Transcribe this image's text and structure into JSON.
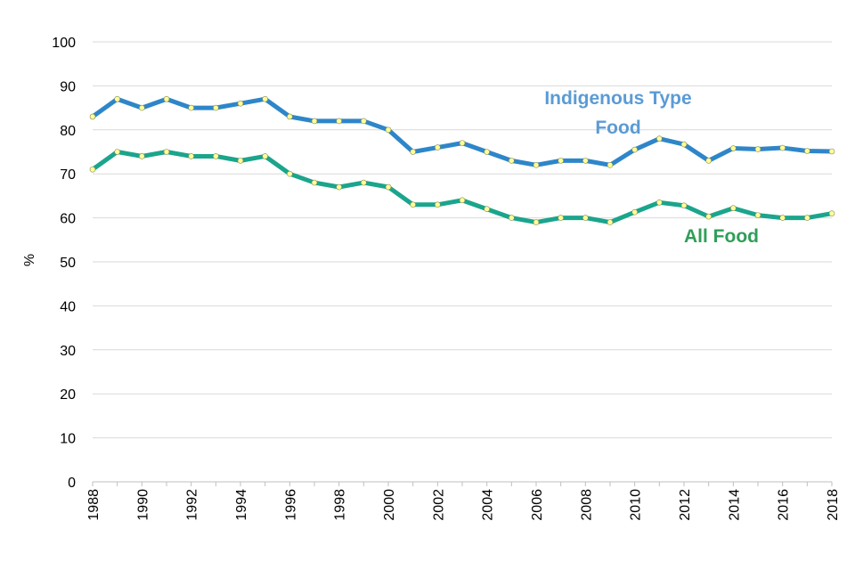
{
  "chart_data": {
    "type": "line",
    "ylabel": "%",
    "xlabel": "",
    "ylim": [
      0,
      100
    ],
    "yticks": [
      0,
      10,
      20,
      30,
      40,
      50,
      60,
      70,
      80,
      90,
      100
    ],
    "xlim": [
      1988,
      2018
    ],
    "xticks": [
      1988,
      1990,
      1992,
      1994,
      1996,
      1998,
      2000,
      2002,
      2004,
      2006,
      2008,
      2010,
      2012,
      2014,
      2016,
      2018
    ],
    "grid": true,
    "x": [
      1988,
      1989,
      1990,
      1991,
      1992,
      1993,
      1994,
      1995,
      1996,
      1997,
      1998,
      1999,
      2000,
      2001,
      2002,
      2003,
      2004,
      2005,
      2006,
      2007,
      2008,
      2009,
      2010,
      2011,
      2012,
      2013,
      2014,
      2015,
      2016,
      2017,
      2018
    ],
    "series": [
      {
        "name": "Indigenous Type Food",
        "label_lines": [
          "Indigenous Type",
          "Food"
        ],
        "color": "#2e86c9",
        "label_color": "#5b9bd5",
        "values": [
          83,
          87,
          85,
          87,
          85,
          85,
          86,
          87,
          83,
          82,
          82,
          82,
          80,
          75,
          76,
          77,
          75,
          73,
          72,
          73,
          73,
          72,
          75.5,
          78,
          76.7,
          73,
          75.8,
          75.6,
          75.9,
          75.2,
          75.1
        ]
      },
      {
        "name": "All Food",
        "label_lines": [
          "All Food"
        ],
        "color": "#1aa58c",
        "label_color": "#2f9e59",
        "values": [
          71,
          75,
          74,
          75,
          74,
          74,
          73,
          74,
          70,
          68,
          67,
          68,
          67,
          63,
          63,
          64,
          62,
          60,
          59,
          60,
          60,
          59,
          61.3,
          63.5,
          62.8,
          60.3,
          62.2,
          60.6,
          60,
          60,
          61
        ]
      }
    ],
    "marker_color": "#ffff99"
  }
}
